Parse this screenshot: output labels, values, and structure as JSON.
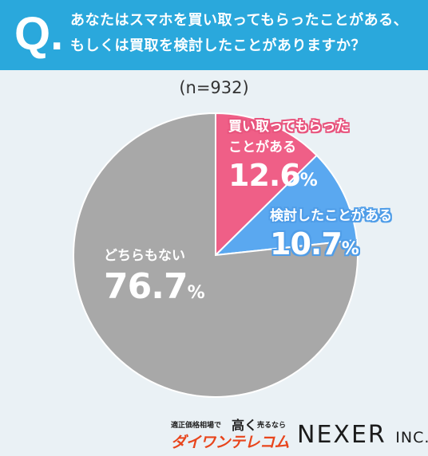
{
  "header": {
    "q_mark": "Q",
    "q_dot": ".",
    "question_line1": "あなたはスマホを買い取ってもらったことがある、",
    "question_line2": "もしくは買取を検討したことがありますか？"
  },
  "sample_size": "(n=932)",
  "colors": {
    "header_bg": "#2aa8dc",
    "sold": "#ef5f87",
    "considered": "#5aa8f0",
    "none": "#a8a8a8",
    "background": "#eaf1f5"
  },
  "chart_data": {
    "type": "pie",
    "title": "",
    "slices": [
      {
        "label_line1": "買い取ってもらった",
        "label_line2": "ことがある",
        "value": 12.6,
        "value_text": "12.6",
        "unit": "%"
      },
      {
        "label_line1": "検討したことがある",
        "label_line2": "",
        "value": 10.7,
        "value_text": "10.7",
        "unit": "%"
      },
      {
        "label_line1": "どちらもない",
        "label_line2": "",
        "value": 76.7,
        "value_text": "76.7",
        "unit": "%"
      }
    ]
  },
  "logos": {
    "daiwan_small": "適正価格相場で",
    "daiwan_big": "高く",
    "daiwan_tiny": "売るなら",
    "daiwan_brand": "ダイワンテレコム",
    "nexer": "NEXER",
    "nexer_inc": "INC."
  }
}
